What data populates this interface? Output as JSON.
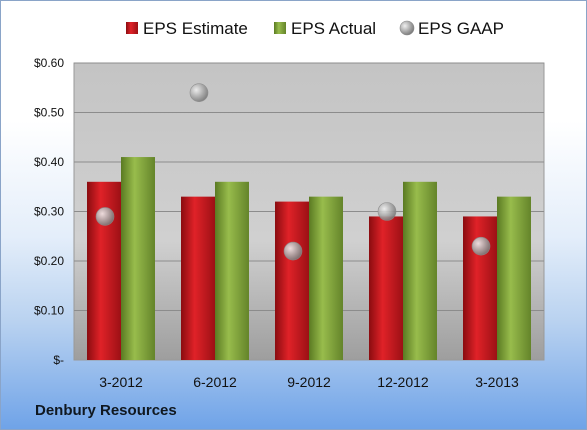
{
  "company": "Denbury Resources",
  "colors": {
    "estimate": "#c9161c",
    "actual": "#7ea03a",
    "gaap": "#a8a8a8"
  },
  "chart_data": {
    "type": "bar",
    "categories": [
      "3-2012",
      "6-2012",
      "9-2012",
      "12-2012",
      "3-2013"
    ],
    "series": [
      {
        "name": "EPS Estimate",
        "kind": "bar",
        "values": [
          0.36,
          0.33,
          0.32,
          0.29,
          0.29
        ]
      },
      {
        "name": "EPS Actual",
        "kind": "bar",
        "values": [
          0.41,
          0.36,
          0.33,
          0.36,
          0.33
        ]
      },
      {
        "name": "EPS GAAP",
        "kind": "scatter",
        "values": [
          0.29,
          0.54,
          0.22,
          0.3,
          0.23
        ]
      }
    ],
    "ylim": [
      0,
      0.6
    ],
    "yticks": [
      0,
      0.1,
      0.2,
      0.3,
      0.4,
      0.5,
      0.6
    ],
    "ytick_labels": [
      "$-",
      "$0.10",
      "$0.20",
      "$0.30",
      "$0.40",
      "$0.50",
      "$0.60"
    ],
    "grid": true,
    "legend_position": "top"
  }
}
